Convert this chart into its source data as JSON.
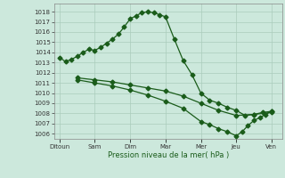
{
  "xlabel": "Pression niveau de la mer( hPa )",
  "bg_color": "#cce8dc",
  "grid_color": "#aaccbb",
  "line_color": "#1a5c1a",
  "xtick_labels": [
    "Ditoun",
    "Sam",
    "Dim",
    "Mar",
    "Mer",
    "Jeu",
    "Ven"
  ],
  "xtick_positions": [
    0,
    1,
    2,
    3,
    4,
    5,
    6
  ],
  "ylim": [
    1005.5,
    1018.8
  ],
  "yticks": [
    1006,
    1007,
    1008,
    1009,
    1010,
    1011,
    1012,
    1013,
    1014,
    1015,
    1016,
    1017,
    1018
  ],
  "line1_x": [
    0.0,
    0.17,
    0.33,
    0.5,
    0.67,
    0.83,
    1.0,
    1.17,
    1.33,
    1.5,
    1.67,
    1.83,
    2.0,
    2.17,
    2.33,
    2.5,
    2.67,
    2.83,
    3.0,
    3.25,
    3.5,
    3.75,
    4.0,
    4.25,
    4.5,
    4.75,
    5.0,
    5.25,
    5.5,
    5.75,
    6.0
  ],
  "line1_y": [
    1013.5,
    1013.1,
    1013.3,
    1013.6,
    1014.0,
    1014.3,
    1014.2,
    1014.5,
    1014.9,
    1015.3,
    1015.8,
    1016.5,
    1017.3,
    1017.6,
    1017.9,
    1018.0,
    1017.9,
    1017.7,
    1017.5,
    1015.3,
    1013.2,
    1011.8,
    1010.0,
    1009.3,
    1009.0,
    1008.6,
    1008.3,
    1007.8,
    1007.9,
    1008.1,
    1008.2
  ],
  "line2_x": [
    0.5,
    1.0,
    1.5,
    2.0,
    2.5,
    3.0,
    3.5,
    4.0,
    4.5,
    5.0,
    5.5,
    6.0
  ],
  "line2_y": [
    1011.5,
    1011.3,
    1011.1,
    1010.8,
    1010.5,
    1010.2,
    1009.7,
    1009.0,
    1008.3,
    1007.8,
    1007.9,
    1008.1
  ],
  "line3_x": [
    0.5,
    1.0,
    1.5,
    2.0,
    2.5,
    3.0,
    3.5,
    4.0,
    4.25,
    4.5,
    4.75,
    5.0,
    5.17,
    5.33,
    5.5,
    5.67,
    5.83,
    6.0
  ],
  "line3_y": [
    1011.3,
    1011.0,
    1010.7,
    1010.3,
    1009.8,
    1009.2,
    1008.5,
    1007.2,
    1006.9,
    1006.5,
    1006.2,
    1005.8,
    1006.2,
    1006.8,
    1007.3,
    1007.6,
    1007.9,
    1008.2
  ],
  "marker_size": 2.5,
  "linewidth": 0.9
}
